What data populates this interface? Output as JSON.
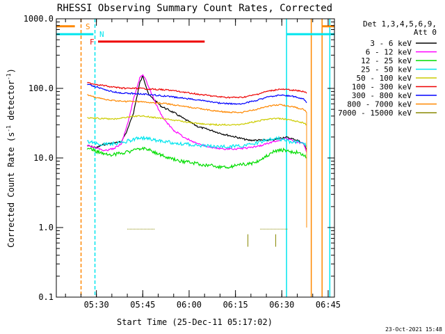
{
  "chart_data": {
    "type": "line",
    "title": "RHESSI Observing Summary Count Rates, Corrected",
    "xlabel": "Start Time (25-Dec-11 05:17:02)",
    "ylabel_main": "Corrected Count Rate (s",
    "ylabel_sup1": "-1",
    "ylabel_mid": " detector",
    "ylabel_sup2": "-1",
    "ylabel_end": ")",
    "y_scale": "log",
    "ylim": [
      0.1,
      1000
    ],
    "xlim_minutes": [
      0,
      90
    ],
    "x_ticks": [
      {
        "label": "05:30",
        "min": 12.97
      },
      {
        "label": "05:45",
        "min": 27.97
      },
      {
        "label": "06:00",
        "min": 42.97
      },
      {
        "label": "06:15",
        "min": 57.97
      },
      {
        "label": "06:30",
        "min": 72.97
      },
      {
        "label": "06:45",
        "min": 87.97
      }
    ],
    "y_ticks": [
      {
        "label": "0.1",
        "value": 0.1
      },
      {
        "label": "1.0",
        "value": 1
      },
      {
        "label": "10.0",
        "value": 10
      },
      {
        "label": "100.0",
        "value": 100
      },
      {
        "label": "1000.0",
        "value": 1000
      }
    ],
    "legend_header": [
      "Det 1,3,4,5,6,9,",
      "Att 0"
    ],
    "legend_placement": "right",
    "series": [
      {
        "name": "3 - 6 keV",
        "color": "#000000",
        "x": [
          10,
          13,
          15,
          17,
          19,
          21,
          23,
          25,
          27,
          28,
          30,
          34,
          38,
          42,
          46,
          50,
          54,
          58,
          62,
          66,
          70,
          72,
          74,
          76,
          78,
          80,
          81
        ],
        "y": [
          15,
          14,
          15.5,
          16,
          16.5,
          17,
          25,
          45,
          120,
          150,
          80,
          55,
          45,
          35,
          28,
          25,
          22,
          20,
          18,
          18,
          18,
          19,
          20,
          19,
          18,
          16,
          13
        ]
      },
      {
        "name": "6 - 12 keV",
        "color": "#ff00ff",
        "x": [
          10,
          13,
          15,
          17,
          19,
          21,
          23,
          25,
          27,
          28,
          29,
          31,
          33,
          35,
          38,
          42,
          46,
          50,
          54,
          58,
          62,
          66,
          70,
          72,
          74,
          76,
          78,
          80,
          81
        ],
        "y": [
          15,
          14,
          13,
          13,
          14,
          16,
          30,
          70,
          140,
          160,
          130,
          80,
          50,
          35,
          25,
          19,
          16,
          14,
          13.5,
          13.5,
          14,
          15,
          17,
          18,
          19,
          18,
          17,
          16,
          12
        ]
      },
      {
        "name": "12 - 25 keV",
        "color": "#00dd00",
        "x": [
          10,
          14,
          18,
          22,
          26,
          28,
          32,
          36,
          40,
          44,
          48,
          52,
          56,
          60,
          64,
          66,
          68,
          70,
          72,
          74,
          76,
          78,
          80,
          81
        ],
        "y": [
          14,
          12,
          11,
          12,
          13,
          14,
          12,
          10,
          9,
          8.5,
          8,
          7.5,
          7.5,
          8,
          8.5,
          9.5,
          10.5,
          12,
          13,
          13,
          12,
          12,
          11,
          10
        ]
      },
      {
        "name": "25 - 50 keV",
        "color": "#00e5ee",
        "x": [
          10,
          14,
          18,
          22,
          26,
          28,
          32,
          36,
          40,
          44,
          48,
          52,
          56,
          60,
          64,
          66,
          68,
          70,
          72,
          74,
          76,
          78,
          80,
          81
        ],
        "y": [
          17,
          16,
          16,
          17,
          19,
          19.5,
          18,
          17,
          16,
          15.5,
          15,
          14.5,
          14.5,
          15,
          16,
          17,
          18,
          19,
          19,
          18,
          17,
          17,
          16,
          15
        ]
      },
      {
        "name": "50 - 100 keV",
        "color": "#cccc00",
        "x": [
          10,
          14,
          18,
          22,
          26,
          28,
          32,
          36,
          40,
          44,
          48,
          52,
          56,
          60,
          64,
          68,
          72,
          76,
          80,
          81
        ],
        "y": [
          38,
          37,
          36,
          38,
          40,
          40,
          38,
          36,
          34,
          32,
          30.5,
          30,
          30,
          30.5,
          33,
          36,
          37,
          35,
          32,
          30
        ]
      },
      {
        "name": "100 - 300 keV",
        "color": "#ee0000",
        "x": [
          10,
          14,
          18,
          22,
          26,
          28,
          32,
          36,
          40,
          44,
          48,
          52,
          56,
          60,
          64,
          68,
          72,
          76,
          80,
          81
        ],
        "y": [
          120,
          112,
          105,
          100,
          100,
          99,
          97,
          95,
          90,
          85,
          80,
          76,
          74,
          74,
          80,
          90,
          97,
          95,
          90,
          85
        ]
      },
      {
        "name": "300 - 800 keV",
        "color": "#0000ff",
        "x": [
          10,
          14,
          18,
          22,
          26,
          28,
          32,
          36,
          40,
          44,
          48,
          52,
          56,
          60,
          64,
          68,
          72,
          76,
          80,
          81
        ],
        "y": [
          115,
          102,
          90,
          85,
          84,
          83,
          80,
          77,
          73,
          70,
          66,
          62,
          60,
          60,
          66,
          74,
          80,
          78,
          70,
          62
        ]
      },
      {
        "name": "800 - 7000 keV",
        "color": "#ff8800",
        "x": [
          10,
          14,
          18,
          22,
          26,
          28,
          32,
          36,
          40,
          44,
          48,
          52,
          56,
          60,
          64,
          68,
          72,
          76,
          80,
          81
        ],
        "y": [
          80,
          72,
          67,
          65,
          65,
          64,
          62,
          60,
          56,
          53,
          50,
          47,
          45,
          45,
          49,
          55,
          58,
          55,
          50,
          45
        ]
      },
      {
        "name": "7000 - 15000 keV",
        "color": "#888800",
        "segments": [
          {
            "x": [
              23,
              32
            ],
            "y": [
              0.95,
              0.95
            ]
          },
          {
            "x": [
              66,
              75
            ],
            "y": [
              0.95,
              0.95
            ]
          },
          {
            "x": [
              62,
              62
            ],
            "y": [
              0.53,
              0.8
            ]
          },
          {
            "x": [
              71,
              71
            ],
            "y": [
              0.53,
              0.8
            ]
          }
        ]
      }
    ],
    "flags": [
      {
        "label": "S",
        "color": "#ff8800",
        "x": [
          0,
          6
        ],
        "y": 780
      },
      {
        "label": "N",
        "color": "#00e5ee",
        "x": [
          0,
          12
        ],
        "y": 600
      },
      {
        "label": "F",
        "color": "#ee0000",
        "x": [
          13.5,
          48
        ],
        "y": 470
      }
    ],
    "right_flags": [
      {
        "color": "#ff8800",
        "x": [
          86,
          90
        ],
        "y": 780
      },
      {
        "color": "#00e5ee",
        "x": [
          74.5,
          90
        ],
        "y": 600
      }
    ],
    "vlines": [
      {
        "x": 8,
        "color": "#ff8800",
        "style": "dashed"
      },
      {
        "x": 12.5,
        "color": "#00e5ee",
        "style": "dashed"
      },
      {
        "x": 74.5,
        "color": "#00e5ee",
        "style": "solid"
      },
      {
        "x": 82.5,
        "color": "#ff8800",
        "style": "solid"
      },
      {
        "x": 86,
        "color": "#ff8800",
        "style": "solid"
      },
      {
        "x": 88.5,
        "color": "#00e5ee",
        "style": "solid"
      }
    ],
    "timestamp": "23-Oct-2021 15:48"
  }
}
